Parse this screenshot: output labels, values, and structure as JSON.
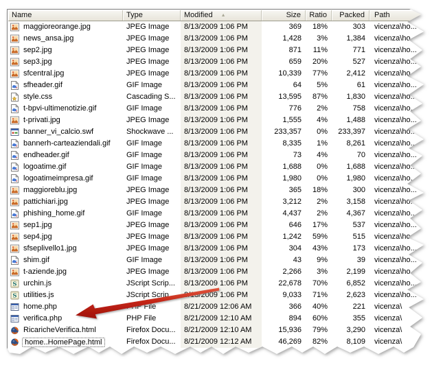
{
  "columns": [
    {
      "label": "Name"
    },
    {
      "label": "Type"
    },
    {
      "label": "Modified"
    },
    {
      "label": "Size"
    },
    {
      "label": "Ratio"
    },
    {
      "label": "Packed"
    },
    {
      "label": "Path"
    }
  ],
  "sort": {
    "column": "Modified",
    "direction": "ascending",
    "indicator": "▲"
  },
  "files": [
    {
      "name": "maggioreorange.jpg",
      "icon": "jpeg",
      "type": "JPEG Image",
      "modified": "8/13/2009 1:06 PM",
      "size": "369",
      "ratio": "18%",
      "packed": "303",
      "path": "vicenza\\ho..."
    },
    {
      "name": "news_ansa.jpg",
      "icon": "jpeg",
      "type": "JPEG Image",
      "modified": "8/13/2009 1:06 PM",
      "size": "1,428",
      "ratio": "3%",
      "packed": "1,384",
      "path": "vicenza\\ho..."
    },
    {
      "name": "sep2.jpg",
      "icon": "jpeg",
      "type": "JPEG Image",
      "modified": "8/13/2009 1:06 PM",
      "size": "871",
      "ratio": "11%",
      "packed": "771",
      "path": "vicenza\\ho..."
    },
    {
      "name": "sep3.jpg",
      "icon": "jpeg",
      "type": "JPEG Image",
      "modified": "8/13/2009 1:06 PM",
      "size": "659",
      "ratio": "20%",
      "packed": "527",
      "path": "vicenza\\ho..."
    },
    {
      "name": "sfcentral.jpg",
      "icon": "jpeg",
      "type": "JPEG Image",
      "modified": "8/13/2009 1:06 PM",
      "size": "10,339",
      "ratio": "77%",
      "packed": "2,412",
      "path": "vicenza\\ho..."
    },
    {
      "name": "sfheader.gif",
      "icon": "gif",
      "type": "GIF Image",
      "modified": "8/13/2009 1:06 PM",
      "size": "64",
      "ratio": "5%",
      "packed": "61",
      "path": "vicenza\\ho..."
    },
    {
      "name": "style.css",
      "icon": "css",
      "type": "Cascading S...",
      "modified": "8/13/2009 1:06 PM",
      "size": "13,595",
      "ratio": "87%",
      "packed": "1,830",
      "path": "vicenza\\ho..."
    },
    {
      "name": "t-bpvi-ultimenotizie.gif",
      "icon": "gif",
      "type": "GIF Image",
      "modified": "8/13/2009 1:06 PM",
      "size": "776",
      "ratio": "2%",
      "packed": "758",
      "path": "vicenza\\ho..."
    },
    {
      "name": "t-privati.jpg",
      "icon": "jpeg",
      "type": "JPEG Image",
      "modified": "8/13/2009 1:06 PM",
      "size": "1,555",
      "ratio": "4%",
      "packed": "1,488",
      "path": "vicenza\\ho..."
    },
    {
      "name": "banner_vi_calcio.swf",
      "icon": "swf",
      "type": "Shockwave ...",
      "modified": "8/13/2009 1:06 PM",
      "size": "233,357",
      "ratio": "0%",
      "packed": "233,397",
      "path": "vicenza\\ho..."
    },
    {
      "name": "bannerh-carteaziendali.gif",
      "icon": "gif",
      "type": "GIF Image",
      "modified": "8/13/2009 1:06 PM",
      "size": "8,335",
      "ratio": "1%",
      "packed": "8,261",
      "path": "vicenza\\ho..."
    },
    {
      "name": "endheader.gif",
      "icon": "gif",
      "type": "GIF Image",
      "modified": "8/13/2009 1:06 PM",
      "size": "73",
      "ratio": "4%",
      "packed": "70",
      "path": "vicenza\\ho..."
    },
    {
      "name": "logoatime.gif",
      "icon": "gif",
      "type": "GIF Image",
      "modified": "8/13/2009 1:06 PM",
      "size": "1,688",
      "ratio": "0%",
      "packed": "1,688",
      "path": "vicenza\\ho..."
    },
    {
      "name": "logoatimeimpresa.gif",
      "icon": "gif",
      "type": "GIF Image",
      "modified": "8/13/2009 1:06 PM",
      "size": "1,980",
      "ratio": "0%",
      "packed": "1,980",
      "path": "vicenza\\ho..."
    },
    {
      "name": "maggioreblu.jpg",
      "icon": "jpeg",
      "type": "JPEG Image",
      "modified": "8/13/2009 1:06 PM",
      "size": "365",
      "ratio": "18%",
      "packed": "300",
      "path": "vicenza\\ho..."
    },
    {
      "name": "pattichiari.jpg",
      "icon": "jpeg",
      "type": "JPEG Image",
      "modified": "8/13/2009 1:06 PM",
      "size": "3,212",
      "ratio": "2%",
      "packed": "3,158",
      "path": "vicenza\\ho..."
    },
    {
      "name": "phishing_home.gif",
      "icon": "gif",
      "type": "GIF Image",
      "modified": "8/13/2009 1:06 PM",
      "size": "4,437",
      "ratio": "2%",
      "packed": "4,367",
      "path": "vicenza\\ho..."
    },
    {
      "name": "sep1.jpg",
      "icon": "jpeg",
      "type": "JPEG Image",
      "modified": "8/13/2009 1:06 PM",
      "size": "646",
      "ratio": "17%",
      "packed": "537",
      "path": "vicenza\\ho..."
    },
    {
      "name": "sep4.jpg",
      "icon": "jpeg",
      "type": "JPEG Image",
      "modified": "8/13/2009 1:06 PM",
      "size": "1,242",
      "ratio": "59%",
      "packed": "515",
      "path": "vicenza\\ho..."
    },
    {
      "name": "sfseplivello1.jpg",
      "icon": "jpeg",
      "type": "JPEG Image",
      "modified": "8/13/2009 1:06 PM",
      "size": "304",
      "ratio": "43%",
      "packed": "173",
      "path": "vicenza\\ho..."
    },
    {
      "name": "shim.gif",
      "icon": "gif",
      "type": "GIF Image",
      "modified": "8/13/2009 1:06 PM",
      "size": "43",
      "ratio": "9%",
      "packed": "39",
      "path": "vicenza\\ho..."
    },
    {
      "name": "t-aziende.jpg",
      "icon": "jpeg",
      "type": "JPEG Image",
      "modified": "8/13/2009 1:06 PM",
      "size": "2,266",
      "ratio": "3%",
      "packed": "2,199",
      "path": "vicenza\\ho..."
    },
    {
      "name": "urchin.js",
      "icon": "js",
      "type": "JScript Scrip...",
      "modified": "8/13/2009 1:06 PM",
      "size": "22,678",
      "ratio": "70%",
      "packed": "6,852",
      "path": "vicenza\\ho..."
    },
    {
      "name": "utilities.js",
      "icon": "js",
      "type": "JScript Scrip...",
      "modified": "8/13/2009 1:06 PM",
      "size": "9,033",
      "ratio": "71%",
      "packed": "2,623",
      "path": "vicenza\\ho..."
    },
    {
      "name": "home.php",
      "icon": "php",
      "type": "PHP File",
      "modified": "8/21/2009 12:06 AM",
      "size": "366",
      "ratio": "40%",
      "packed": "221",
      "path": "vicenza\\"
    },
    {
      "name": "verifica.php",
      "icon": "php",
      "type": "PHP File",
      "modified": "8/21/2009 12:10 AM",
      "size": "894",
      "ratio": "60%",
      "packed": "355",
      "path": "vicenza\\"
    },
    {
      "name": "RicaricheVerifica.html",
      "icon": "firefox",
      "type": "Firefox Docu...",
      "modified": "8/21/2009 12:10 AM",
      "size": "15,936",
      "ratio": "79%",
      "packed": "3,290",
      "path": "vicenza\\"
    },
    {
      "name": "home..HomePage.html",
      "icon": "firefox",
      "type": "Firefox Docu...",
      "modified": "8/21/2009 12:12 AM",
      "size": "46,269",
      "ratio": "82%",
      "packed": "8,109",
      "path": "vicenza\\",
      "focused": true
    }
  ],
  "annotation": {
    "type": "red-arrow",
    "points_to": "verifica.php",
    "color_light": "#e2573e",
    "color_dark": "#9e120b"
  },
  "colors": {
    "header_bg": "#ebe9e0",
    "header_border": "#9c9a8c",
    "sorted_column_tint": "#f3f2ec",
    "list_bg": "#ffffff"
  }
}
